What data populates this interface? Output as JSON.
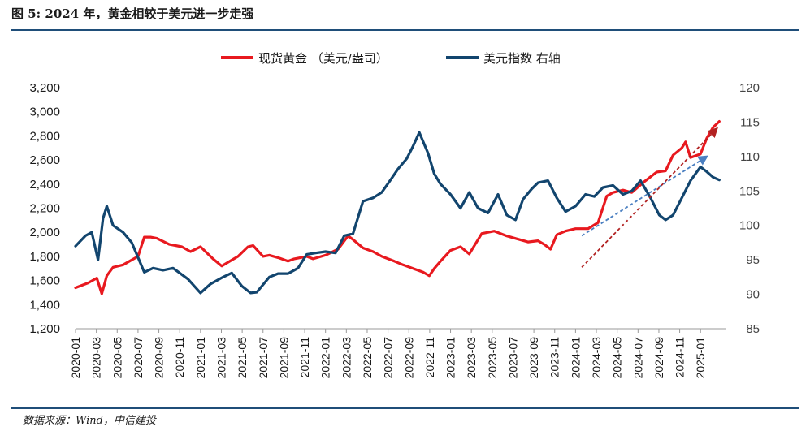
{
  "title": "图 5: 2024 年，黄金相较于美元进一步走强",
  "source": "数据来源：Wind，中信建投",
  "colors": {
    "gold": "#e8191f",
    "usd": "#12456e",
    "rule": "#1f4e79",
    "arrow_red": "#b22222",
    "arrow_blue": "#4a7fc1"
  },
  "chart_data": {
    "type": "line",
    "legend_position": "top-center",
    "legend": [
      "现货黄金 （美元/盎司）",
      "美元指数 右轴"
    ],
    "x_ticks": [
      "2020-01",
      "2020-03",
      "2020-05",
      "2020-07",
      "2020-09",
      "2020-11",
      "2021-01",
      "2021-03",
      "2021-05",
      "2021-07",
      "2021-09",
      "2021-11",
      "2022-01",
      "2022-03",
      "2022-05",
      "2022-07",
      "2022-09",
      "2022-11",
      "2023-01",
      "2023-03",
      "2023-05",
      "2023-07",
      "2023-09",
      "2023-11",
      "2024-01",
      "2024-03",
      "2024-05",
      "2024-07",
      "2024-09",
      "2024-11",
      "2025-01"
    ],
    "y_left": {
      "ylim": [
        1200,
        3200
      ],
      "ticks": [
        "1,200",
        "1,400",
        "1,600",
        "1,800",
        "2,000",
        "2,200",
        "2,400",
        "2,600",
        "2,800",
        "3,000",
        "3,200"
      ]
    },
    "y_right": {
      "ylim": [
        85,
        120
      ],
      "ticks": [
        "85",
        "90",
        "95",
        "100",
        "105",
        "110",
        "115",
        "120"
      ]
    },
    "series": [
      {
        "name": "现货黄金 （美元/盎司）",
        "axis": "left",
        "color": "#e8191f",
        "x": [
          2020.0,
          2020.1,
          2020.17,
          2020.21,
          2020.25,
          2020.3,
          2020.38,
          2020.5,
          2020.55,
          2020.6,
          2020.65,
          2020.75,
          2020.85,
          2020.92,
          2021.0,
          2021.1,
          2021.17,
          2021.25,
          2021.3,
          2021.38,
          2021.42,
          2021.5,
          2021.55,
          2021.62,
          2021.7,
          2021.75,
          2021.85,
          2021.9,
          2022.0,
          2022.1,
          2022.18,
          2022.22,
          2022.3,
          2022.38,
          2022.45,
          2022.55,
          2022.62,
          2022.7,
          2022.78,
          2022.83,
          2022.87,
          2022.92,
          2023.0,
          2023.08,
          2023.15,
          2023.25,
          2023.35,
          2023.45,
          2023.55,
          2023.62,
          2023.7,
          2023.75,
          2023.8,
          2023.85,
          2023.92,
          2024.0,
          2024.1,
          2024.18,
          2024.25,
          2024.3,
          2024.38,
          2024.45,
          2024.55,
          2024.65,
          2024.72,
          2024.78,
          2024.85,
          2024.88,
          2024.92,
          2025.0,
          2025.05,
          2025.1,
          2025.15
        ],
        "values": [
          1540,
          1580,
          1620,
          1490,
          1640,
          1710,
          1730,
          1800,
          1960,
          1960,
          1950,
          1900,
          1880,
          1840,
          1880,
          1780,
          1720,
          1770,
          1800,
          1880,
          1890,
          1800,
          1810,
          1790,
          1760,
          1780,
          1800,
          1780,
          1810,
          1860,
          1970,
          1940,
          1870,
          1840,
          1800,
          1760,
          1730,
          1700,
          1670,
          1640,
          1700,
          1760,
          1850,
          1880,
          1820,
          1990,
          2010,
          1970,
          1940,
          1920,
          1930,
          1900,
          1860,
          1980,
          2010,
          2030,
          2030,
          2080,
          2300,
          2330,
          2350,
          2330,
          2420,
          2500,
          2510,
          2640,
          2700,
          2750,
          2620,
          2650,
          2780,
          2870,
          2920
        ]
      },
      {
        "name": "美元指数 右轴",
        "axis": "right",
        "color": "#12456e",
        "x": [
          2020.0,
          2020.08,
          2020.13,
          2020.18,
          2020.22,
          2020.25,
          2020.3,
          2020.38,
          2020.45,
          2020.55,
          2020.62,
          2020.7,
          2020.78,
          2020.9,
          2021.0,
          2021.08,
          2021.18,
          2021.25,
          2021.33,
          2021.4,
          2021.45,
          2021.55,
          2021.62,
          2021.7,
          2021.78,
          2021.85,
          2021.92,
          2022.0,
          2022.08,
          2022.15,
          2022.22,
          2022.3,
          2022.38,
          2022.45,
          2022.52,
          2022.58,
          2022.65,
          2022.7,
          2022.75,
          2022.82,
          2022.87,
          2022.92,
          2023.0,
          2023.08,
          2023.15,
          2023.22,
          2023.3,
          2023.38,
          2023.45,
          2023.52,
          2023.58,
          2023.65,
          2023.7,
          2023.78,
          2023.85,
          2023.92,
          2024.0,
          2024.08,
          2024.15,
          2024.22,
          2024.3,
          2024.38,
          2024.45,
          2024.52,
          2024.6,
          2024.67,
          2024.72,
          2024.78,
          2024.85,
          2024.92,
          2025.0,
          2025.05,
          2025.1,
          2025.15
        ],
        "values": [
          97,
          98.5,
          99,
          95,
          101,
          102.8,
          100,
          99,
          97.5,
          93.2,
          93.8,
          93.5,
          93.8,
          92.2,
          90.2,
          91.5,
          92.5,
          93.1,
          91.2,
          90.2,
          90.3,
          92.5,
          93,
          93,
          93.8,
          95.8,
          96,
          96.2,
          96,
          98.5,
          98.8,
          103.5,
          104,
          104.8,
          106.6,
          108.2,
          109.7,
          111.5,
          113.5,
          110.5,
          107.5,
          106,
          104.5,
          102.5,
          104.8,
          102.5,
          101.8,
          104.5,
          101.5,
          100.8,
          103.8,
          105.3,
          106.2,
          106.5,
          104,
          102,
          102.8,
          104.5,
          104.2,
          105.5,
          105.8,
          104.5,
          105,
          106.5,
          104,
          101.5,
          100.8,
          101.5,
          104,
          106.5,
          108.5,
          107.8,
          107,
          106.6
        ]
      }
    ],
    "annotations": [
      {
        "type": "dashed-arrow",
        "color": "#b22222",
        "from": [
          2024.05,
          1710
        ],
        "to": [
          2025.13,
          2860
        ]
      },
      {
        "type": "dashed-arrow",
        "color": "#4a7fc1",
        "from": [
          2024.05,
          98.5
        ],
        "to": [
          2025.05,
          110
        ]
      }
    ]
  }
}
